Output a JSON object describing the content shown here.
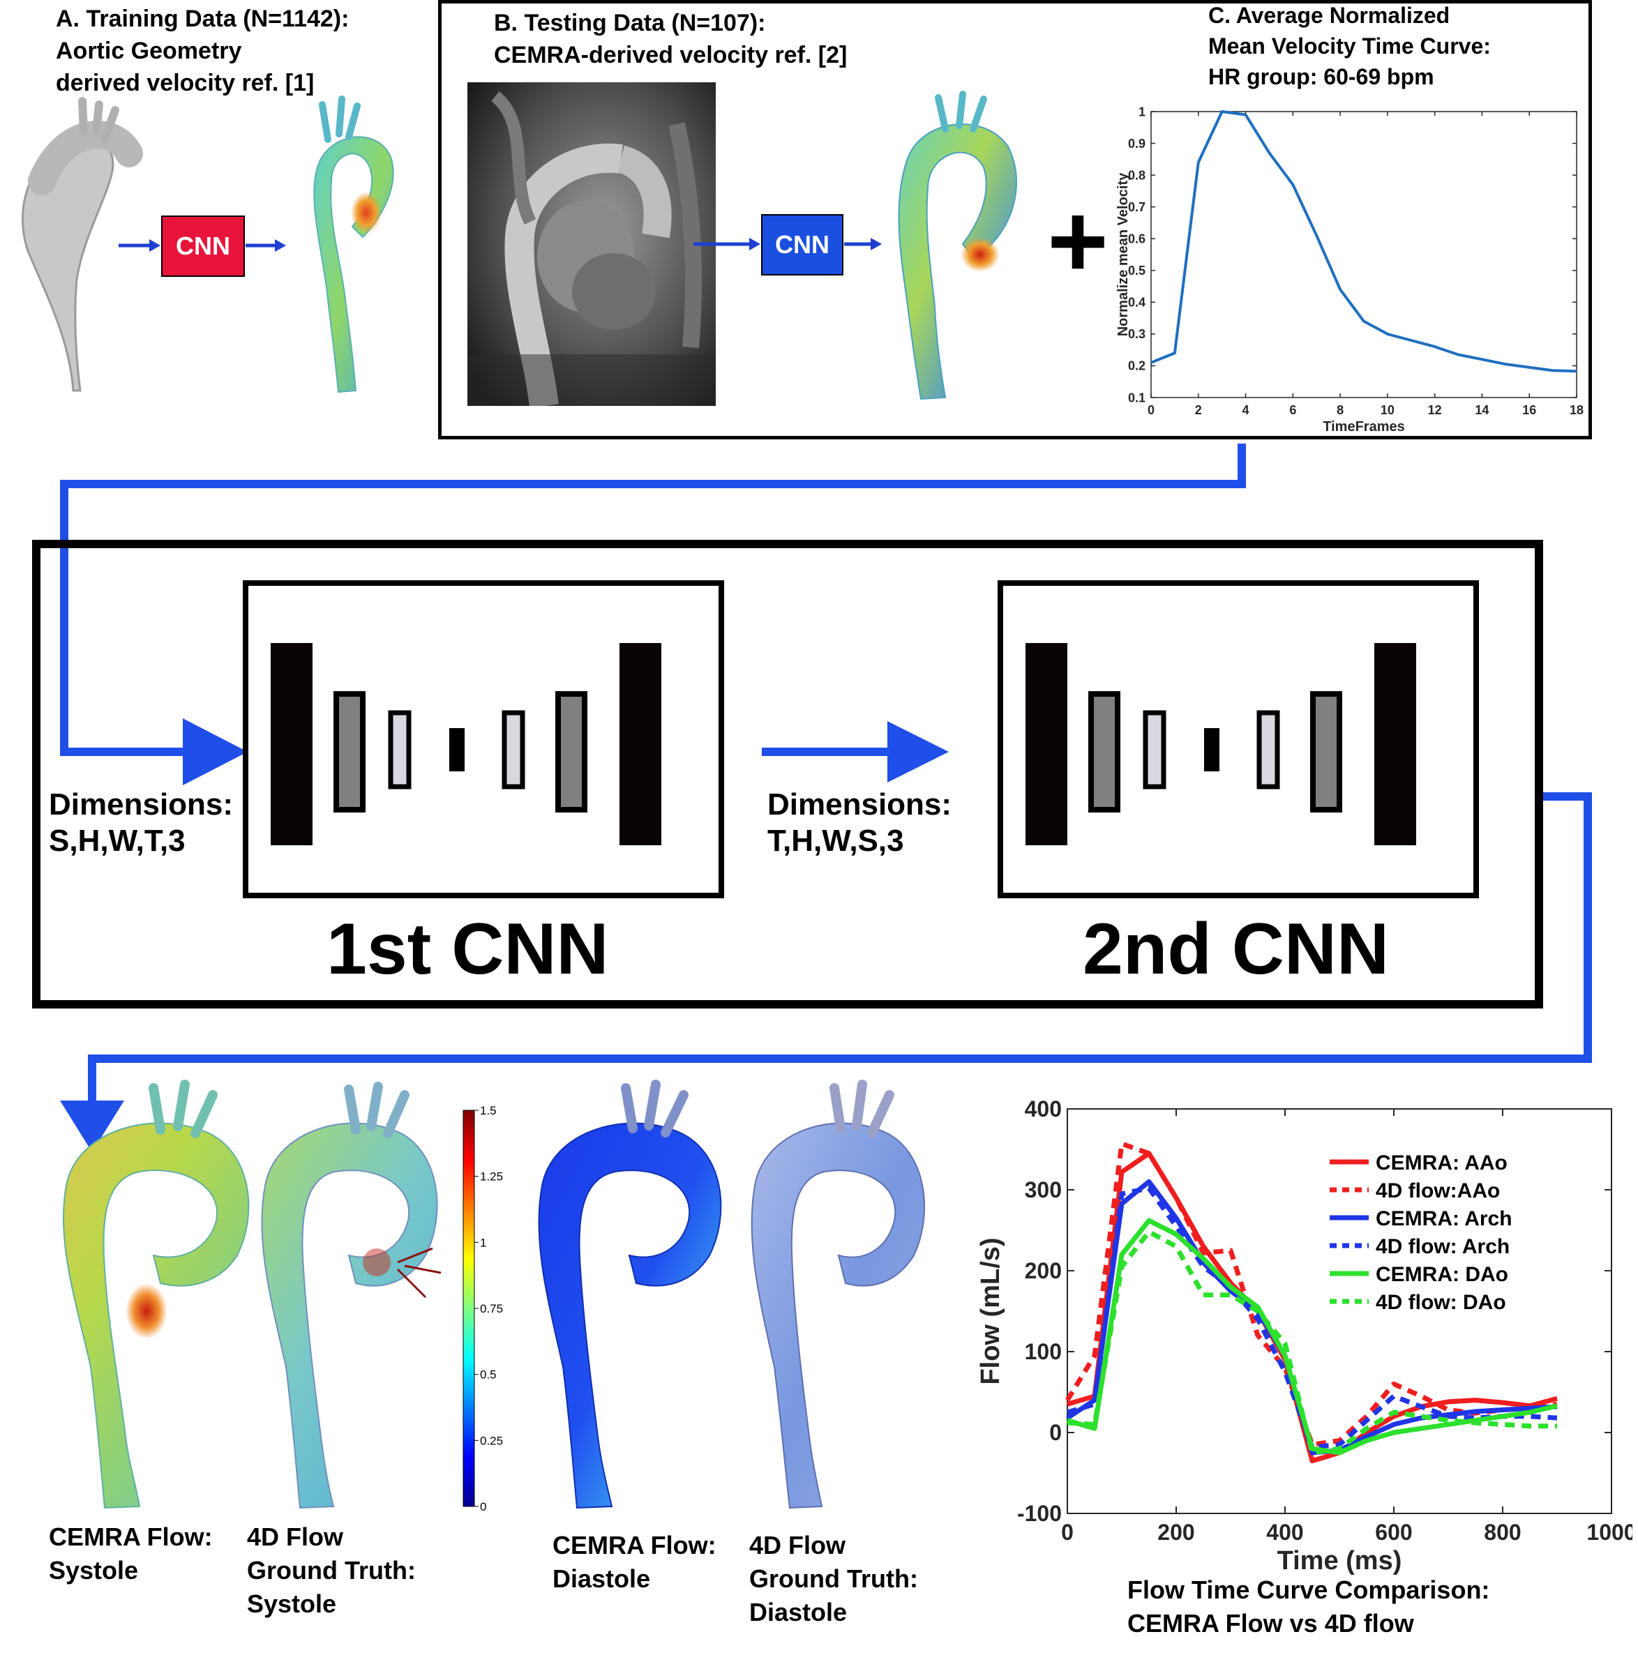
{
  "panel_a": {
    "title_l1": "A. Training Data (N=1142):",
    "title_l2": "Aortic Geometry",
    "title_l3": "derived velocity ref. [1]",
    "cnn_label": "CNN",
    "cnn_color": "#e8143c"
  },
  "panel_b": {
    "title_l1": "B. Testing Data (N=107):",
    "title_l2": "CEMRA-derived velocity ref. [2]",
    "cnn_label": "CNN",
    "cnn_color": "#1a4fe0",
    "plus": "+"
  },
  "panel_c": {
    "title_l1": "C. Average Normalized",
    "title_l2": "Mean Velocity Time Curve:",
    "title_l3": "HR group: 60-69 bpm"
  },
  "pipeline": {
    "dims1_l1": "Dimensions:",
    "dims1_l2": "S,H,W,T,3",
    "dims2_l1": "Dimensions:",
    "dims2_l2": "T,H,W,S,3",
    "cnn1": "1st CNN",
    "cnn2": "2nd CNN",
    "arrow_color": "#1f4fe8"
  },
  "colorbar": {
    "ticks": [
      "1.5",
      "1.25",
      "1",
      "0.75",
      "0.5",
      "0.25",
      "0"
    ]
  },
  "captions": {
    "c1_l1": "CEMRA Flow:",
    "c1_l2": "Systole",
    "c2_l1": "4D Flow",
    "c2_l2": "Ground Truth:",
    "c2_l3": "Systole",
    "c3_l1": "CEMRA Flow:",
    "c3_l2": "Diastole",
    "c4_l1": "4D Flow",
    "c4_l2": "Ground Truth:",
    "c4_l3": "Diastole",
    "flow_l1": "Flow Time Curve Comparison:",
    "flow_l2": "CEMRA Flow vs 4D flow"
  },
  "chart_data": [
    {
      "type": "line",
      "title": "",
      "xlabel": "TimeFrames",
      "ylabel": "Normalize mean Velocity",
      "xlim": [
        0,
        18
      ],
      "ylim": [
        0.1,
        1
      ],
      "xticks": [
        0,
        2,
        4,
        6,
        8,
        10,
        12,
        14,
        16,
        18
      ],
      "yticks": [
        0.1,
        0.2,
        0.3,
        0.4,
        0.5,
        0.6,
        0.7,
        0.8,
        0.9,
        1
      ],
      "ytick_labels": [
        "0.1",
        "0.2",
        "0.3",
        "0.4",
        "0.5",
        "0.6",
        "0.7",
        "0.8",
        "0.9",
        "1"
      ],
      "series": [
        {
          "color": "#1f6fbf",
          "x": [
            0,
            1,
            2,
            3,
            4,
            5,
            6,
            7,
            8,
            9,
            10,
            11,
            12,
            13,
            14,
            15,
            16,
            17,
            18
          ],
          "y": [
            0.21,
            0.24,
            0.84,
            1.0,
            0.99,
            0.87,
            0.77,
            0.61,
            0.44,
            0.34,
            0.3,
            0.28,
            0.26,
            0.235,
            0.22,
            0.205,
            0.195,
            0.185,
            0.183
          ]
        }
      ],
      "grid": false
    },
    {
      "type": "line",
      "title": "",
      "xlabel": "Time (ms)",
      "ylabel": "Flow (mL/s)",
      "xlim": [
        0,
        1000
      ],
      "ylim": [
        -100,
        400
      ],
      "xticks": [
        0,
        200,
        400,
        600,
        800,
        1000
      ],
      "yticks": [
        -100,
        0,
        100,
        200,
        300,
        400
      ],
      "legend_position": "top-right",
      "grid": false,
      "series": [
        {
          "name": "CEMRA: AAo",
          "color": "#f01e1e",
          "dash": false,
          "x": [
            0,
            50,
            100,
            150,
            200,
            250,
            300,
            350,
            400,
            450,
            500,
            550,
            600,
            650,
            700,
            750,
            800,
            850,
            900
          ],
          "y": [
            35,
            45,
            322,
            345,
            290,
            230,
            185,
            150,
            90,
            -35,
            -25,
            0,
            20,
            32,
            38,
            40,
            37,
            33,
            42
          ]
        },
        {
          "name": "4D flow:AAo",
          "color": "#f01e1e",
          "dash": true,
          "x": [
            0,
            50,
            100,
            150,
            200,
            250,
            300,
            350,
            400,
            450,
            500,
            550,
            600,
            650,
            700,
            750,
            800,
            850,
            900
          ],
          "y": [
            40,
            95,
            357,
            345,
            290,
            222,
            225,
            120,
            80,
            -15,
            -10,
            20,
            60,
            45,
            28,
            24,
            28,
            30,
            35
          ]
        },
        {
          "name": "CEMRA: Arch",
          "color": "#1f35e6",
          "dash": false,
          "x": [
            0,
            50,
            100,
            150,
            200,
            250,
            300,
            350,
            400,
            450,
            500,
            550,
            600,
            650,
            700,
            750,
            800,
            850,
            900
          ],
          "y": [
            18,
            40,
            283,
            310,
            265,
            210,
            175,
            150,
            95,
            -25,
            -22,
            -5,
            10,
            18,
            22,
            26,
            28,
            30,
            32
          ]
        },
        {
          "name": "4D flow: Arch",
          "color": "#1f35e6",
          "dash": true,
          "x": [
            0,
            50,
            100,
            150,
            200,
            250,
            300,
            350,
            400,
            450,
            500,
            550,
            600,
            650,
            700,
            750,
            800,
            850,
            900
          ],
          "y": [
            25,
            35,
            295,
            302,
            255,
            205,
            180,
            140,
            75,
            -18,
            -15,
            15,
            45,
            32,
            20,
            18,
            20,
            20,
            18
          ]
        },
        {
          "name": "CEMRA: DAo",
          "color": "#2ce02c",
          "dash": false,
          "x": [
            0,
            50,
            100,
            150,
            200,
            250,
            300,
            350,
            400,
            450,
            500,
            550,
            600,
            650,
            700,
            750,
            800,
            850,
            900
          ],
          "y": [
            15,
            5,
            220,
            262,
            245,
            215,
            180,
            155,
            95,
            -20,
            -25,
            -10,
            0,
            5,
            10,
            15,
            20,
            25,
            33
          ]
        },
        {
          "name": "4D flow: DAo",
          "color": "#2ce02c",
          "dash": true,
          "x": [
            0,
            50,
            100,
            150,
            200,
            250,
            300,
            350,
            400,
            450,
            500,
            550,
            600,
            650,
            700,
            750,
            800,
            850,
            900
          ],
          "y": [
            12,
            10,
            205,
            248,
            230,
            170,
            170,
            150,
            110,
            -25,
            -20,
            5,
            25,
            20,
            15,
            12,
            10,
            8,
            8
          ]
        }
      ]
    }
  ]
}
